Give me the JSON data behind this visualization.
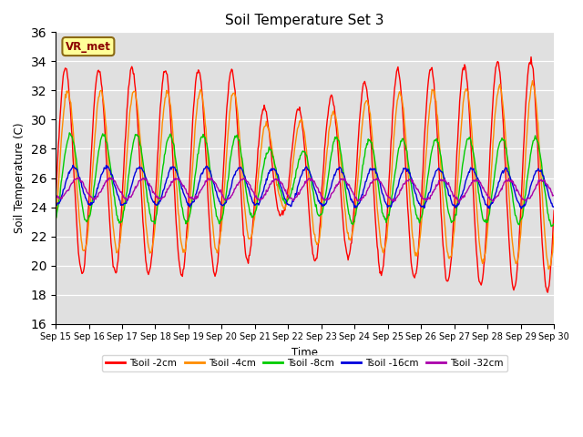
{
  "title": "Soil Temperature Set 3",
  "xlabel": "Time",
  "ylabel": "Soil Temperature (C)",
  "ylim": [
    16,
    36
  ],
  "yticks": [
    16,
    18,
    20,
    22,
    24,
    26,
    28,
    30,
    32,
    34,
    36
  ],
  "xtick_labels": [
    "Sep 15",
    "Sep 16",
    "Sep 17",
    "Sep 18",
    "Sep 19",
    "Sep 20",
    "Sep 21",
    "Sep 22",
    "Sep 23",
    "Sep 24",
    "Sep 25",
    "Sep 26",
    "Sep 27",
    "Sep 28",
    "Sep 29",
    "Sep 30"
  ],
  "annotation_text": "VR_met",
  "bg_color": "#e0e0e0",
  "series_labels": [
    "Tsoil -2cm",
    "Tsoil -4cm",
    "Tsoil -8cm",
    "Tsoil -16cm",
    "Tsoil -32cm"
  ],
  "series_colors": [
    "#ff0000",
    "#ff8c00",
    "#00cc00",
    "#0000dd",
    "#aa00aa"
  ]
}
